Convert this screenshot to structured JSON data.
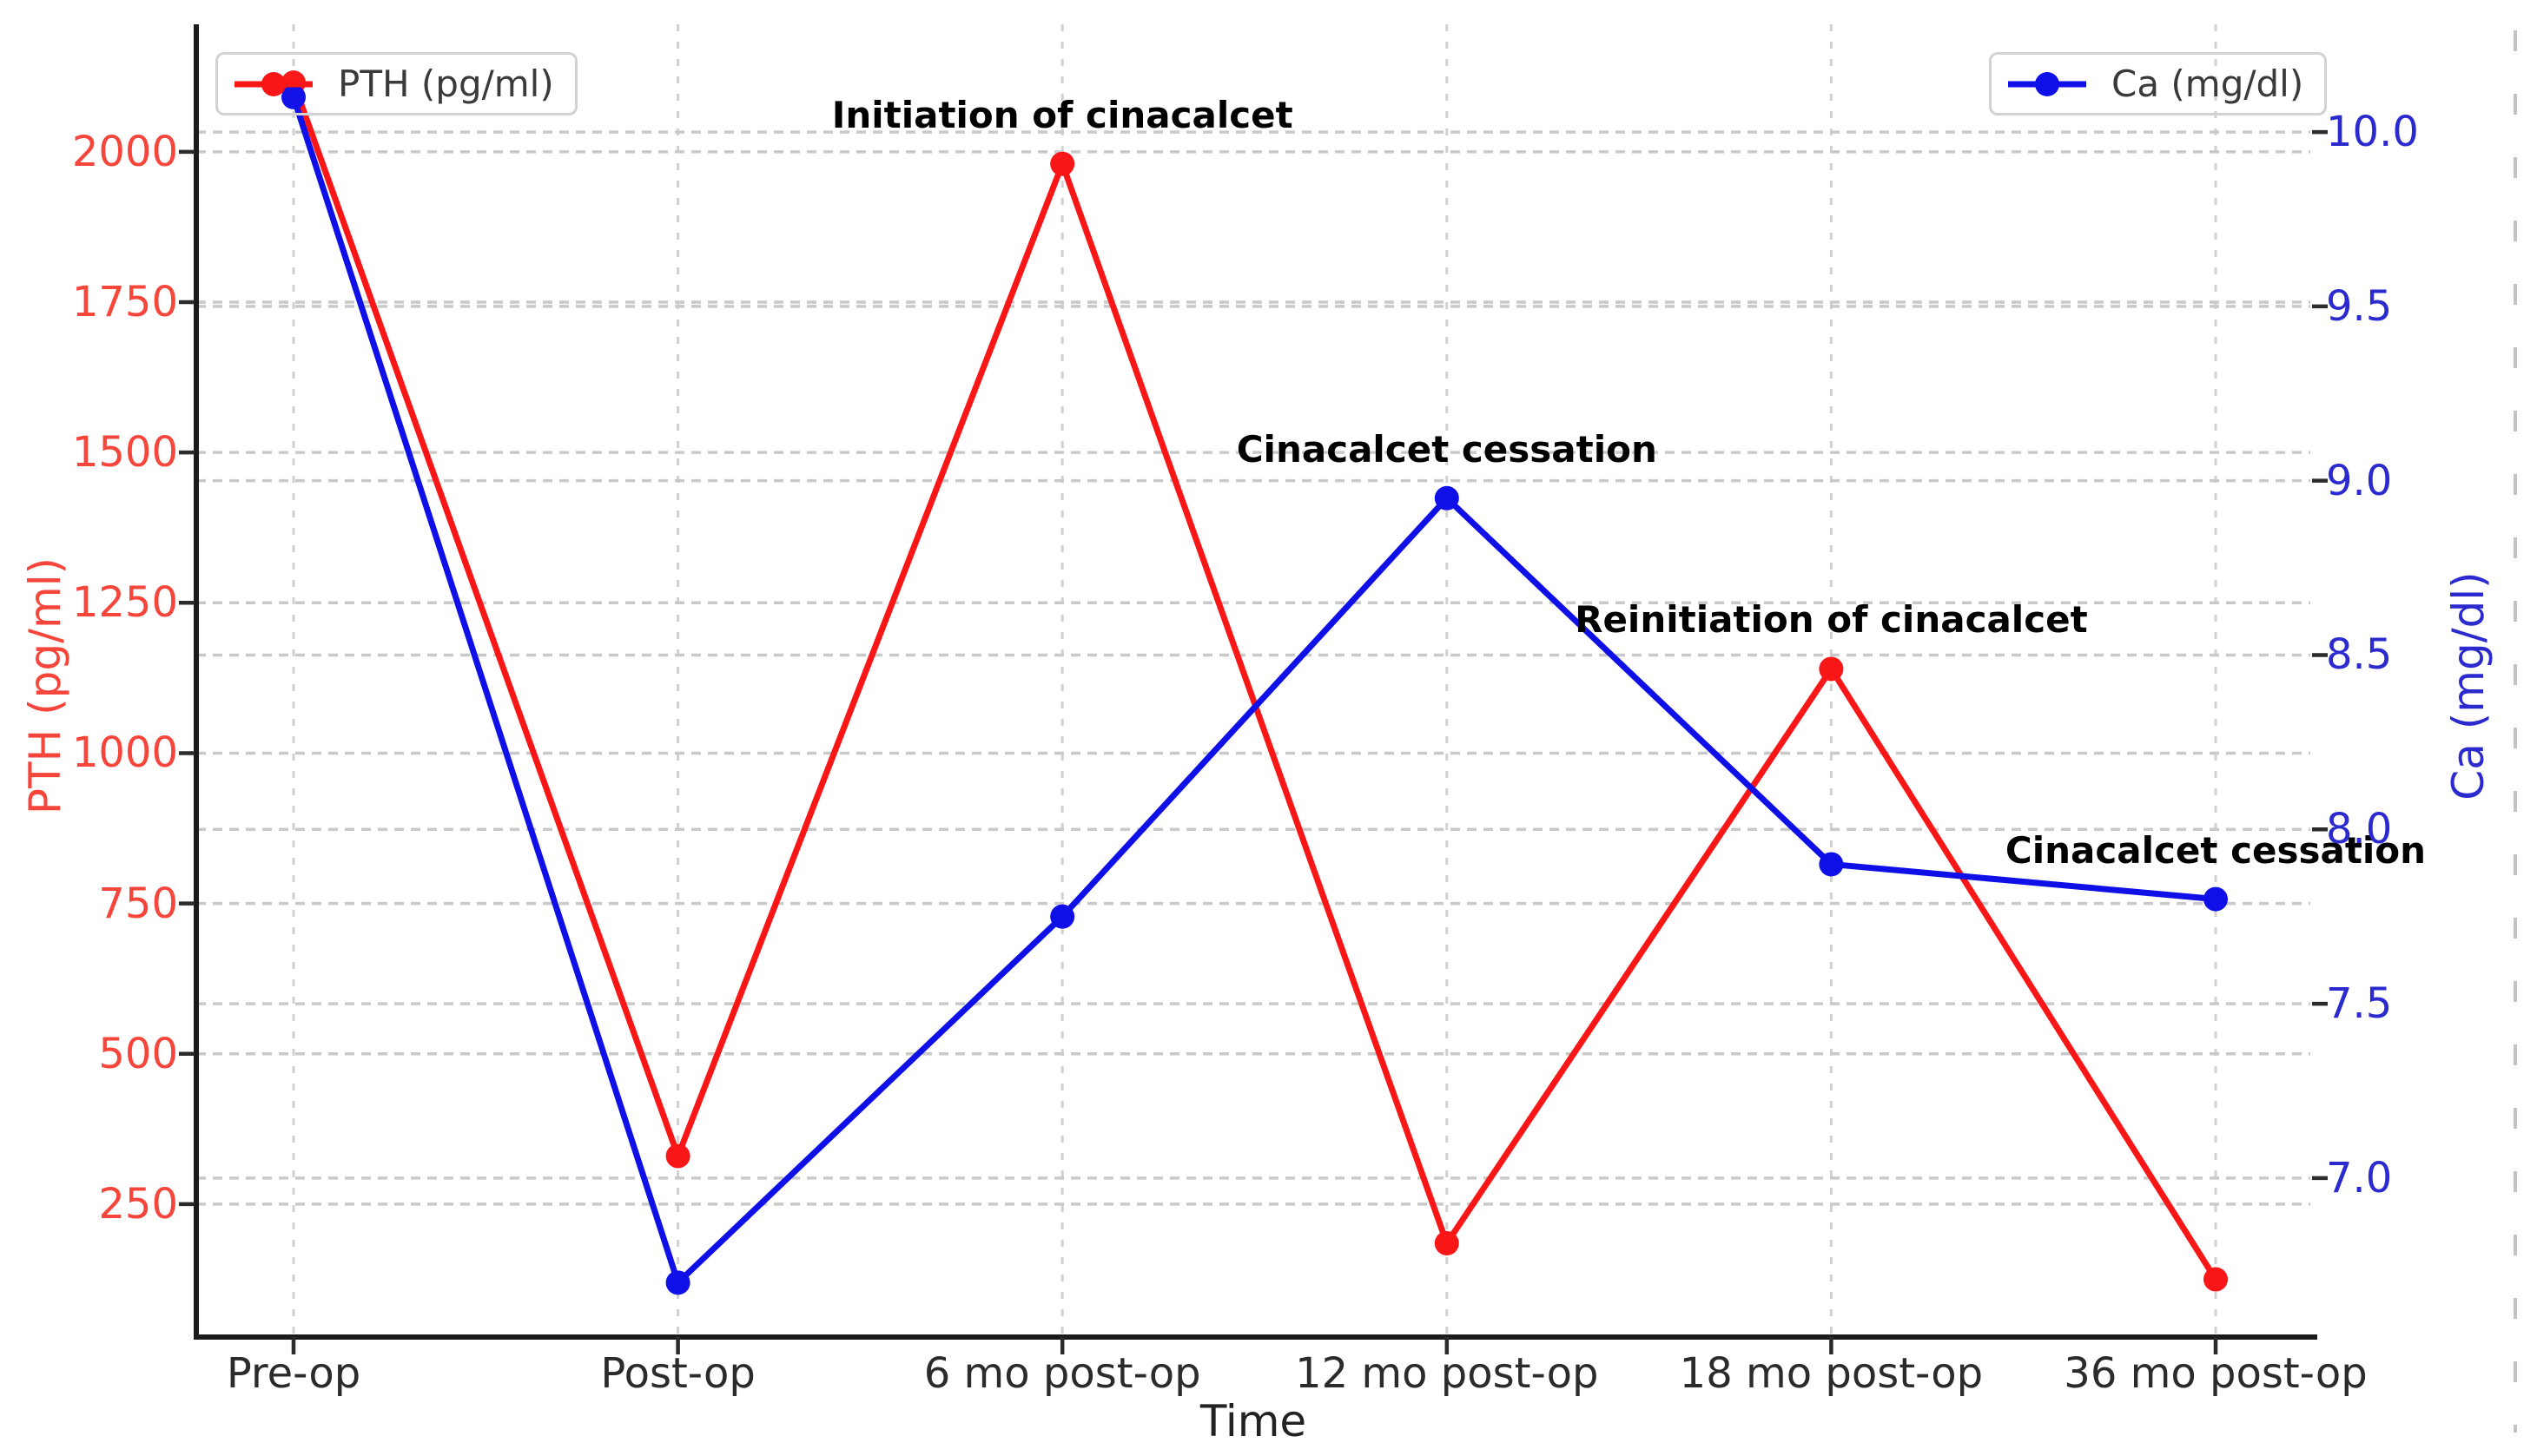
{
  "figure": {
    "background": "#ffffff",
    "grid_color": "#c9c9c9",
    "spine_color": "#1b1b1b",
    "right_edge_dashed_line_color": "#c2c2c2"
  },
  "chart_data": {
    "type": "line",
    "title": "",
    "x_label": "Time",
    "categories": [
      "Pre-op",
      "Post-op",
      "6 mo post-op",
      "12 mo post-op",
      "18 mo post-op",
      "36 mo post-op"
    ],
    "series": [
      {
        "name": "PTH (pg/ml)",
        "axis": "left",
        "color": "#f91616",
        "values": [
          2115,
          330,
          1980,
          185,
          1140,
          125
        ]
      },
      {
        "name": "Ca (mg/dl)",
        "axis": "right",
        "color": "#0f0fe8",
        "values": [
          10.1,
          6.7,
          7.75,
          8.95,
          7.9,
          7.8
        ]
      }
    ],
    "left_axis": {
      "label": "PTH (pg/ml)",
      "color": "#f6453b",
      "ticks": [
        2000,
        1750,
        1500,
        1250,
        1000,
        750,
        500,
        250
      ],
      "range": [
        29,
        2212
      ]
    },
    "right_axis": {
      "label": "Ca (mg/dl)",
      "color": "#2a2ace",
      "ticks": [
        "10.0",
        "9.5",
        "9.0",
        "8.5",
        "8.0",
        "7.5",
        "7.0"
      ],
      "range": [
        6.544,
        10.309
      ]
    },
    "grid": {
      "on": true,
      "style": "dashed",
      "vertical_per_category": true
    },
    "legend": [
      {
        "label": "PTH (pg/ml)",
        "position": "upper-left"
      },
      {
        "label": "Ca (mg/dl)",
        "position": "upper-right"
      }
    ],
    "annotations": [
      {
        "text": "Initiation of cinacalcet",
        "series": 0,
        "point": 2
      },
      {
        "text": "Cinacalcet cessation",
        "series": 1,
        "point": 3
      },
      {
        "text": "Reinitiation of cinacalcet",
        "series": 0,
        "point": 4
      },
      {
        "text": "Cinacalcet cessation",
        "series": 1,
        "point": 5
      }
    ]
  }
}
